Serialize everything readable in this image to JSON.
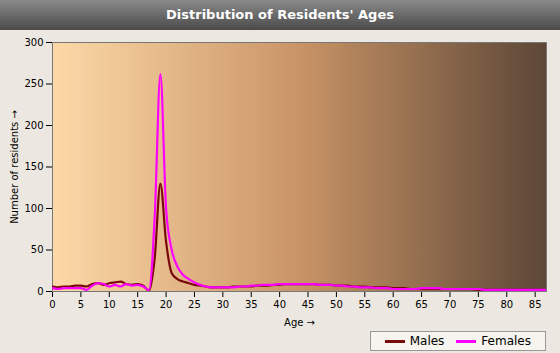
{
  "chart_data": {
    "type": "line",
    "title": "Distribution of Residents' Ages",
    "x_label": "Age",
    "y_label": "Number of residents",
    "x": [
      0,
      1,
      2,
      3,
      4,
      5,
      6,
      7,
      8,
      9,
      10,
      11,
      12,
      13,
      14,
      15,
      16,
      17,
      18,
      19,
      20,
      21,
      22,
      23,
      24,
      25,
      26,
      27,
      28,
      29,
      30,
      31,
      32,
      33,
      34,
      35,
      36,
      37,
      38,
      39,
      40,
      41,
      42,
      43,
      44,
      45,
      46,
      47,
      48,
      49,
      50,
      51,
      52,
      53,
      54,
      55,
      56,
      57,
      58,
      59,
      60,
      61,
      62,
      63,
      64,
      65,
      66,
      67,
      68,
      69,
      70,
      71,
      72,
      73,
      74,
      75,
      76,
      77,
      78,
      79,
      80,
      81,
      82,
      83,
      84,
      85,
      86,
      87
    ],
    "series": [
      {
        "name": "Males",
        "color": "#7a0a0a",
        "values": [
          6,
          5,
          6,
          6,
          7,
          7,
          6,
          9,
          10,
          8,
          10,
          11,
          12,
          9,
          8,
          9,
          7,
          1,
          40,
          130,
          60,
          22,
          15,
          12,
          10,
          8,
          7,
          6,
          5,
          5,
          5,
          5,
          6,
          6,
          6,
          6,
          7,
          7,
          7,
          8,
          8,
          9,
          9,
          9,
          9,
          9,
          9,
          8,
          8,
          8,
          7,
          7,
          7,
          6,
          6,
          6,
          5,
          5,
          5,
          5,
          4,
          4,
          4,
          3,
          3,
          3,
          3,
          3,
          3,
          3,
          3,
          3,
          3,
          3,
          3,
          2,
          2,
          2,
          2,
          2,
          2,
          2,
          2,
          2,
          2,
          2,
          2,
          2
        ]
      },
      {
        "name": "Females",
        "color": "#ff00ff",
        "values": [
          4,
          3,
          4,
          4,
          4,
          4,
          2,
          7,
          10,
          9,
          6,
          8,
          6,
          9,
          7,
          8,
          6,
          2,
          90,
          262,
          100,
          50,
          30,
          20,
          15,
          11,
          8,
          6,
          5,
          5,
          5,
          5,
          5,
          6,
          6,
          7,
          7,
          8,
          8,
          8,
          9,
          9,
          9,
          9,
          9,
          9,
          9,
          8,
          8,
          8,
          7,
          7,
          6,
          6,
          5,
          5,
          5,
          4,
          4,
          4,
          3,
          3,
          3,
          3,
          3,
          4,
          4,
          4,
          4,
          3,
          3,
          3,
          3,
          3,
          3,
          3,
          2,
          2,
          2,
          2,
          2,
          2,
          2,
          2,
          2,
          2,
          2,
          2
        ]
      }
    ],
    "xlim": [
      0,
      87
    ],
    "xticks": [
      0,
      5,
      10,
      15,
      20,
      25,
      30,
      35,
      40,
      45,
      50,
      55,
      60,
      65,
      70,
      75,
      80,
      85
    ],
    "ylim": [
      0,
      300
    ],
    "yticks": [
      0,
      50,
      100,
      150,
      200,
      250,
      300
    ],
    "grid": true,
    "legend": "bottom-right"
  }
}
